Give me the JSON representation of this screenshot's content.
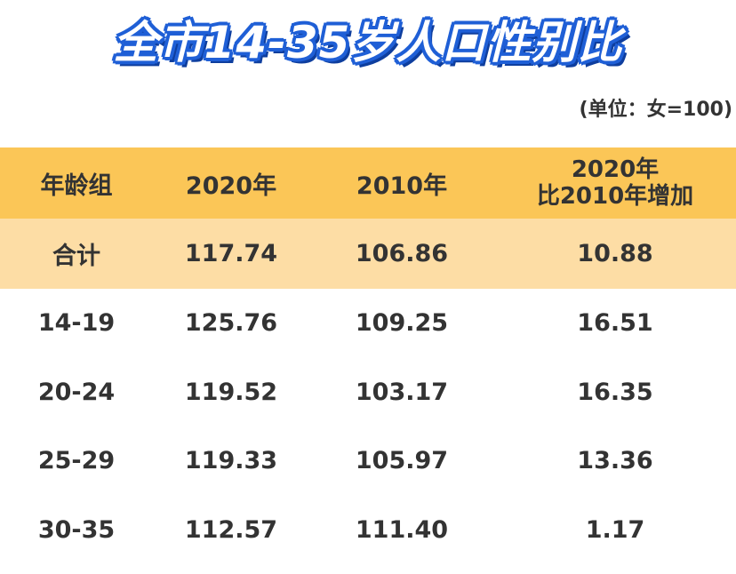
{
  "title": "全市14-35岁人口性别比",
  "unit": "(单位：女=100)",
  "table": {
    "headers": {
      "group": "年龄组",
      "y2020": "2020年",
      "y2010": "2010年",
      "increase_line1": "2020年",
      "increase_line2": "比2010年增加"
    },
    "rows": [
      {
        "group": "合计",
        "y2020": "117.74",
        "y2010": "106.86",
        "increase": "10.88"
      },
      {
        "group": "14-19",
        "y2020": "125.76",
        "y2010": "109.25",
        "increase": "16.51"
      },
      {
        "group": "20-24",
        "y2020": "119.52",
        "y2010": "103.17",
        "increase": "16.35"
      },
      {
        "group": "25-29",
        "y2020": "119.33",
        "y2010": "105.97",
        "increase": "13.36"
      },
      {
        "group": "30-35",
        "y2020": "112.57",
        "y2010": "111.40",
        "increase": "1.17"
      }
    ]
  },
  "colors": {
    "title_fill": "#ffffff",
    "title_outline": "#1f5fd6",
    "header_bg": "#fbc657",
    "total_bg": "#fddda5",
    "text": "#333333"
  }
}
